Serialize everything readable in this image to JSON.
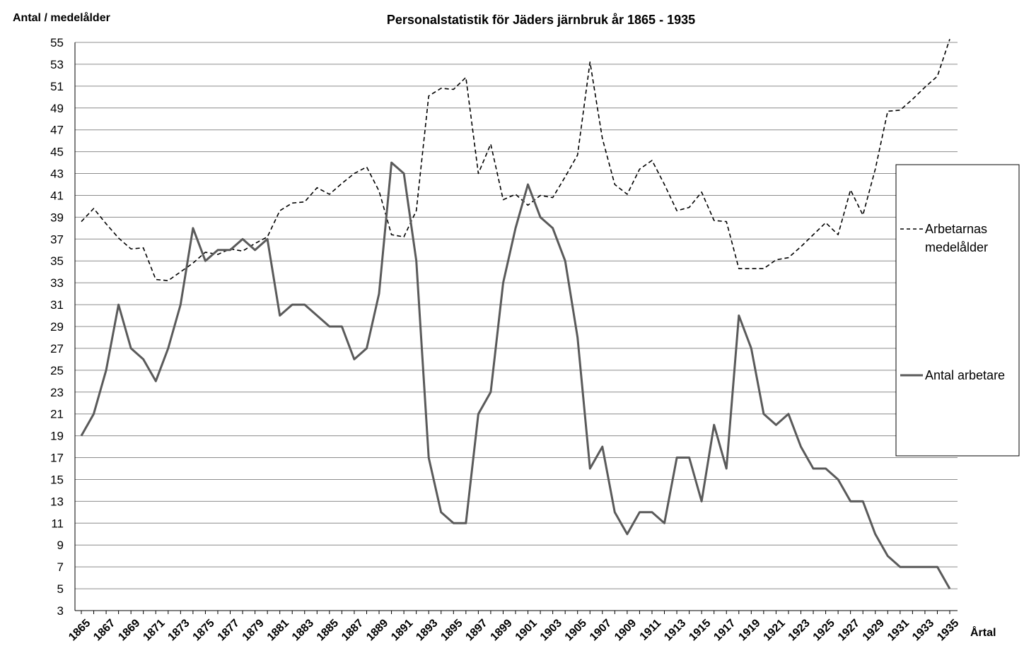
{
  "chart_data": {
    "type": "line",
    "title": "Personalstatistik för Jäders järnbruk år 1865 - 1935",
    "ylabel": "Antal / medelålder",
    "xlabel": "Årtal",
    "ylim": [
      3,
      55
    ],
    "y_ticks": [
      3,
      5,
      7,
      9,
      11,
      13,
      15,
      17,
      19,
      21,
      23,
      25,
      27,
      29,
      31,
      33,
      35,
      37,
      39,
      41,
      43,
      45,
      47,
      49,
      51,
      53,
      55
    ],
    "x_tick_labels": [
      "1865",
      "1867",
      "1869",
      "1871",
      "1873",
      "1875",
      "1877",
      "1879",
      "1881",
      "1883",
      "1885",
      "1887",
      "1889",
      "1891",
      "1893",
      "1895",
      "1897",
      "1899",
      "1901",
      "1903",
      "1905",
      "1907",
      "1909",
      "1911",
      "1913",
      "1915",
      "1917",
      "1919",
      "1921",
      "1923",
      "1925",
      "1927",
      "1929",
      "1931",
      "1933",
      "1935"
    ],
    "grid": "horizontal",
    "legend_position": "right",
    "x": [
      1865,
      1866,
      1867,
      1868,
      1869,
      1870,
      1871,
      1872,
      1873,
      1874,
      1875,
      1876,
      1877,
      1878,
      1879,
      1880,
      1881,
      1882,
      1883,
      1884,
      1885,
      1886,
      1887,
      1888,
      1889,
      1890,
      1891,
      1892,
      1893,
      1894,
      1895,
      1896,
      1897,
      1898,
      1899,
      1900,
      1901,
      1902,
      1903,
      1904,
      1905,
      1906,
      1907,
      1908,
      1909,
      1910,
      1911,
      1912,
      1913,
      1914,
      1915,
      1916,
      1917,
      1918,
      1919,
      1920,
      1921,
      1922,
      1923,
      1924,
      1925,
      1926,
      1927,
      1928,
      1929,
      1930,
      1931,
      1932,
      1933,
      1934,
      1935
    ],
    "series": [
      {
        "name": "Arbetarnas medelålder",
        "style": "dashed",
        "color": "#000000",
        "values": [
          38.6,
          39.8,
          38.4,
          37.1,
          36.1,
          36.2,
          33.3,
          33.2,
          34.0,
          34.8,
          35.8,
          35.6,
          36.1,
          35.9,
          36.6,
          37.2,
          39.6,
          40.3,
          40.4,
          41.7,
          41.1,
          42.1,
          43.0,
          43.6,
          41.4,
          37.4,
          37.2,
          39.6,
          50.1,
          50.8,
          50.7,
          51.8,
          43.0,
          45.7,
          40.6,
          41.1,
          40.1,
          41.0,
          40.8,
          42.7,
          44.7,
          53.2,
          46.2,
          42.0,
          41.1,
          43.4,
          44.2,
          42.0,
          39.6,
          39.9,
          41.3,
          38.7,
          38.6,
          34.3,
          34.3,
          34.3,
          35.1,
          35.3,
          36.3,
          37.4,
          38.5,
          37.4,
          41.5,
          39.2,
          43.4,
          48.7,
          48.8,
          49.8,
          50.9,
          51.9,
          55.3
        ]
      },
      {
        "name": "Antal arbetare",
        "style": "solid",
        "color": "#5a5a5a",
        "values": [
          19,
          21,
          25,
          31,
          27,
          26,
          24,
          27,
          31,
          38,
          35,
          36,
          36,
          37,
          36,
          37,
          30,
          31,
          31,
          30,
          29,
          29,
          26,
          27,
          32,
          44,
          43,
          35,
          17,
          12,
          11,
          11,
          21,
          23,
          33,
          38,
          42,
          39,
          38,
          35,
          28,
          16,
          18,
          12,
          10,
          12,
          12,
          11,
          17,
          17,
          13,
          20,
          16,
          30,
          27,
          21,
          20,
          21,
          18,
          16,
          16,
          15,
          13,
          13,
          10,
          8,
          7,
          7,
          7,
          7,
          5
        ]
      }
    ]
  }
}
